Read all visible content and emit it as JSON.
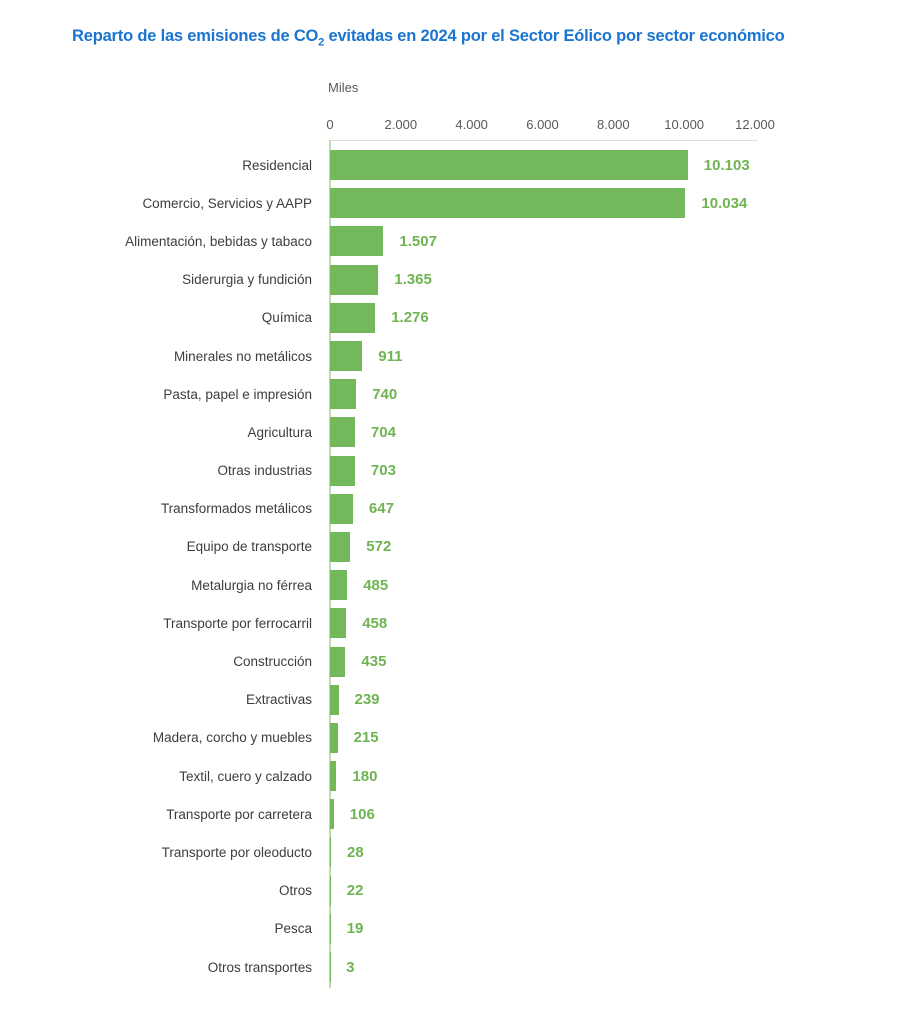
{
  "title": {
    "prefix": "Reparto de las emisiones de CO",
    "subscript": "2",
    "suffix": " evitadas en 2024 por el Sector Eólico por sector económico"
  },
  "axis": {
    "unit_label": "Miles",
    "max": 12000,
    "ticks": [
      {
        "label": "0",
        "value": 0
      },
      {
        "label": "2.000",
        "value": 2000
      },
      {
        "label": "4.000",
        "value": 4000
      },
      {
        "label": "6.000",
        "value": 6000
      },
      {
        "label": "8.000",
        "value": 8000
      },
      {
        "label": "10.000",
        "value": 10000
      },
      {
        "label": "12.000",
        "value": 12000
      }
    ]
  },
  "chart_data": {
    "type": "bar",
    "orientation": "horizontal",
    "title": "Reparto de las emisiones de CO2 evitadas en 2024 por el Sector Eólico por sector económico",
    "xlabel": "Miles",
    "xlim": [
      0,
      12000
    ],
    "grid": false,
    "legend": false,
    "categories": [
      "Residencial",
      "Comercio, Servicios y AAPP",
      "Alimentación, bebidas y tabaco",
      "Siderurgia y fundición",
      "Química",
      "Minerales no metálicos",
      "Pasta, papel e impresión",
      "Agricultura",
      "Otras industrias",
      "Transformados metálicos",
      "Equipo de transporte",
      "Metalurgia no férrea",
      "Transporte por ferrocarril",
      "Construcción",
      "Extractivas",
      "Madera, corcho y muebles",
      "Textil, cuero y calzado",
      "Transporte por carretera",
      "Transporte por oleoducto",
      "Otros",
      "Pesca",
      "Otros transportes"
    ],
    "values": [
      10103,
      10034,
      1507,
      1365,
      1276,
      911,
      740,
      704,
      703,
      647,
      572,
      485,
      458,
      435,
      239,
      215,
      180,
      106,
      28,
      22,
      19,
      3
    ],
    "value_labels": [
      "10.103",
      "10.034",
      "1.507",
      "1.365",
      "1.276",
      "911",
      "740",
      "704",
      "703",
      "647",
      "572",
      "485",
      "458",
      "435",
      "239",
      "215",
      "180",
      "106",
      "28",
      "22",
      "19",
      "3"
    ]
  },
  "colors": {
    "bar": "#73b85a",
    "value_text": "#6fb452",
    "title_text": "#1b75d0",
    "axis_text": "#595959",
    "category_text": "#3d3d3d",
    "axis_line": "#dcdcdc",
    "baseline": "#bedcae"
  }
}
